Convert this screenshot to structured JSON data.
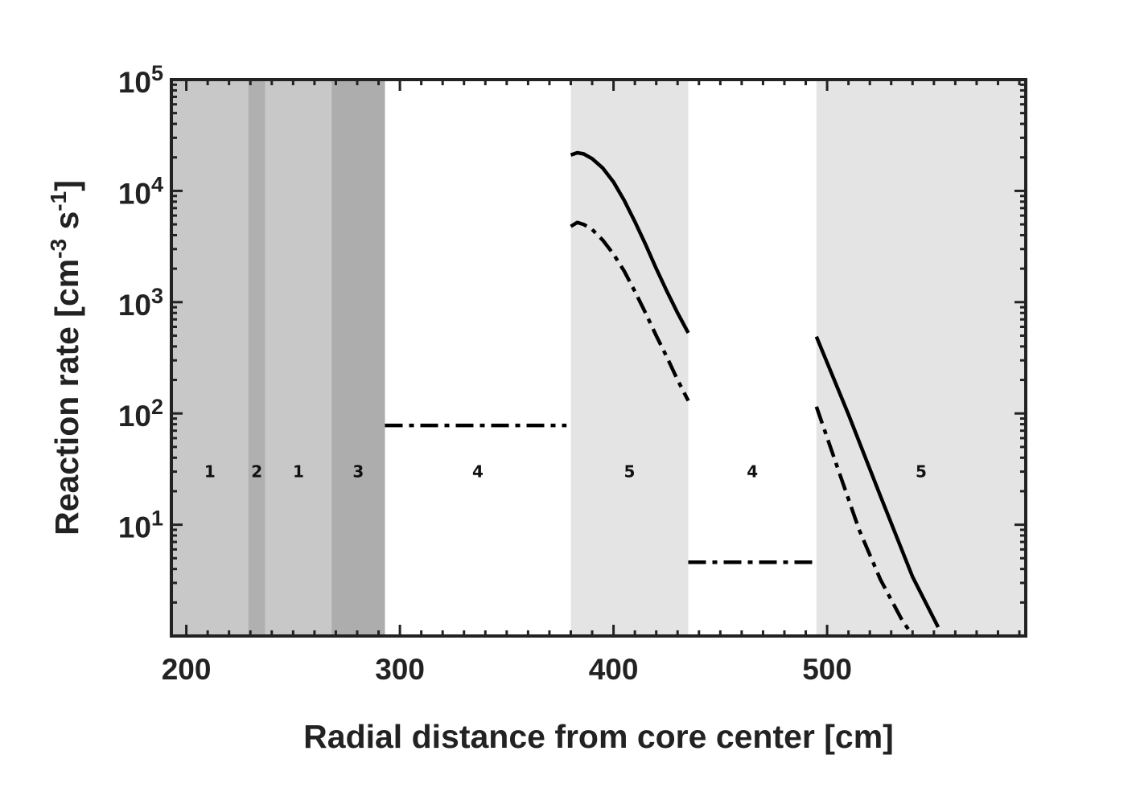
{
  "chart_data": {
    "type": "line",
    "xlabel": "Radial distance from core center [cm]",
    "ylabel_parts": {
      "main": "Reaction rate [cm",
      "exp1": "-3",
      "mid": " s",
      "exp2": "-1",
      "end": "]"
    },
    "xlim": [
      193,
      593
    ],
    "ylim": [
      1,
      100000
    ],
    "yscale": "log",
    "x_ticks": [
      200,
      300,
      400,
      500
    ],
    "x_tick_labels": [
      "200",
      "300",
      "400",
      "500"
    ],
    "y_ticks": [
      10,
      100,
      1000,
      10000,
      100000
    ],
    "y_tick_labels": [
      {
        "base": "10",
        "exp": "1"
      },
      {
        "base": "10",
        "exp": "2"
      },
      {
        "base": "10",
        "exp": "3"
      },
      {
        "base": "10",
        "exp": "4"
      },
      {
        "base": "10",
        "exp": "5"
      }
    ],
    "regions": [
      {
        "x0": 193,
        "x1": 229,
        "label": "1",
        "color": "#c8c8c8"
      },
      {
        "x0": 229,
        "x1": 237,
        "label": "2",
        "color": "#b0b0b0"
      },
      {
        "x0": 237,
        "x1": 268,
        "label": "1",
        "color": "#c8c8c8"
      },
      {
        "x0": 268,
        "x1": 293,
        "label": "3",
        "color": "#adadad"
      },
      {
        "x0": 293,
        "x1": 380,
        "label": "4",
        "color": "#ffffff"
      },
      {
        "x0": 380,
        "x1": 435,
        "label": "5",
        "color": "#e4e4e4"
      },
      {
        "x0": 435,
        "x1": 495,
        "label": "4",
        "color": "#ffffff"
      },
      {
        "x0": 495,
        "x1": 593,
        "label": "5",
        "color": "#e4e4e4"
      }
    ],
    "region_label_y": 30,
    "series": [
      {
        "style": "solid",
        "segments": [
          [
            [
              380,
              21000
            ],
            [
              383,
              22000
            ],
            [
              386,
              21500
            ],
            [
              390,
              19500
            ],
            [
              395,
              16000
            ],
            [
              400,
              12000
            ],
            [
              405,
              8200
            ],
            [
              410,
              5300
            ],
            [
              415,
              3300
            ],
            [
              420,
              2000
            ],
            [
              425,
              1250
            ],
            [
              430,
              800
            ],
            [
              435,
              530
            ]
          ],
          [
            [
              495,
              490
            ],
            [
              510,
              98
            ],
            [
              525,
              18
            ],
            [
              540,
              3.4
            ],
            [
              552,
              1.2
            ]
          ]
        ]
      },
      {
        "style": "dashdot",
        "segments": [
          [
            [
              293,
              78
            ],
            [
              378,
              78
            ]
          ],
          [
            [
              380,
              4800
            ],
            [
              383,
              5200
            ],
            [
              386,
              5000
            ],
            [
              390,
              4500
            ],
            [
              395,
              3600
            ],
            [
              400,
              2700
            ],
            [
              405,
              1900
            ],
            [
              410,
              1250
            ],
            [
              415,
              800
            ],
            [
              420,
              500
            ],
            [
              425,
              320
            ],
            [
              430,
              200
            ],
            [
              435,
              130
            ]
          ],
          [
            [
              435,
              4.6
            ],
            [
              493,
              4.6
            ]
          ],
          [
            [
              495,
              115
            ],
            [
              505,
              32
            ],
            [
              515,
              9
            ],
            [
              525,
              3.2
            ],
            [
              535,
              1.4
            ],
            [
              538,
              1.15
            ]
          ]
        ]
      }
    ]
  }
}
